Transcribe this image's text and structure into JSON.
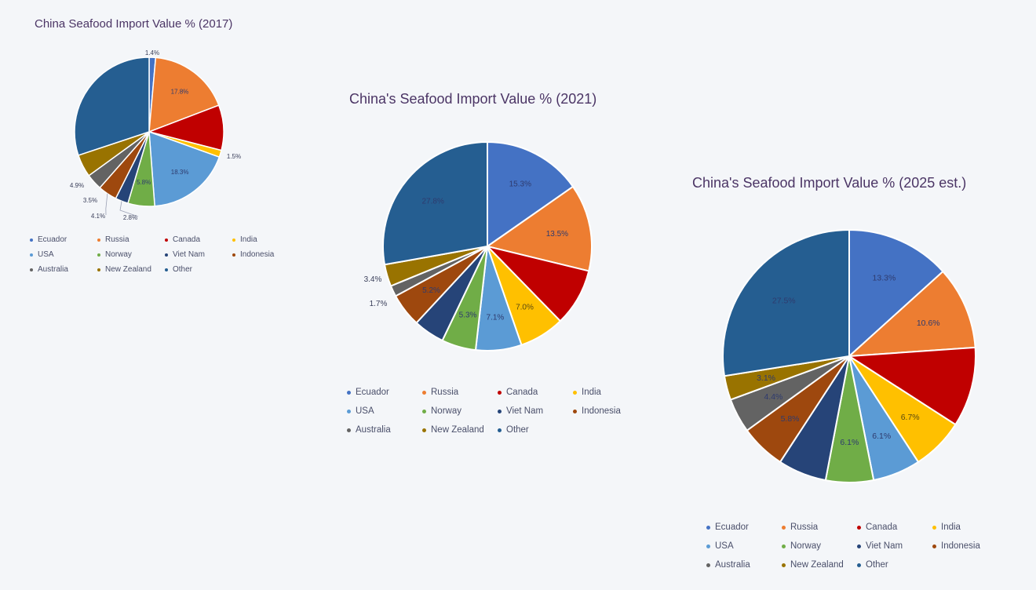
{
  "categories": [
    "Ecuador",
    "Russia",
    "Canada",
    "India",
    "USA",
    "Norway",
    "Viet Nam",
    "Indonesia",
    "Australia",
    "New Zealand",
    "Other"
  ],
  "colors": [
    "#4472c4",
    "#ed7d31",
    "#c00000",
    "#ffc000",
    "#5b9bd5",
    "#70ad47",
    "#264478",
    "#9e480e",
    "#636363",
    "#997300",
    "#255e91"
  ],
  "charts": [
    {
      "title": "China Seafood Import Value % (2017)",
      "slices": [
        {
          "category": "Ecuador",
          "value": 1.4,
          "label": "1.4%"
        },
        {
          "category": "Russia",
          "value": 17.8,
          "label": "17.8%"
        },
        {
          "category": "Canada",
          "value": 9.8,
          "label": ""
        },
        {
          "category": "India",
          "value": 1.5,
          "label": "1.5%"
        },
        {
          "category": "USA",
          "value": 18.3,
          "label": "18.3%"
        },
        {
          "category": "Norway",
          "value": 5.8,
          "label": "5.8%"
        },
        {
          "category": "Viet Nam",
          "value": 2.8,
          "label": "2.8%"
        },
        {
          "category": "Indonesia",
          "value": 4.1,
          "label": "4.1%"
        },
        {
          "category": "Australia",
          "value": 3.5,
          "label": "3.5%"
        },
        {
          "category": "New Zealand",
          "value": 4.9,
          "label": "4.9%"
        },
        {
          "category": "Other",
          "value": 30.1,
          "label": ""
        }
      ]
    },
    {
      "title": "China's Seafood Import Value % (2021)",
      "slices": [
        {
          "category": "Ecuador",
          "value": 15.3,
          "label": "15.3%"
        },
        {
          "category": "Russia",
          "value": 13.5,
          "label": "13.5%"
        },
        {
          "category": "Canada",
          "value": 8.9,
          "label": ""
        },
        {
          "category": "India",
          "value": 7.0,
          "label": "7.0%"
        },
        {
          "category": "USA",
          "value": 7.1,
          "label": "7.1%"
        },
        {
          "category": "Norway",
          "value": 5.3,
          "label": "5.3%"
        },
        {
          "category": "Viet Nam",
          "value": 4.8,
          "label": ""
        },
        {
          "category": "Indonesia",
          "value": 5.2,
          "label": "5.2%"
        },
        {
          "category": "Australia",
          "value": 1.7,
          "label": "1.7%"
        },
        {
          "category": "New Zealand",
          "value": 3.4,
          "label": "3.4%"
        },
        {
          "category": "Other",
          "value": 27.8,
          "label": "27.8%"
        }
      ]
    },
    {
      "title": "China's Seafood Import Value % (2025 est.)",
      "slices": [
        {
          "category": "Ecuador",
          "value": 13.3,
          "label": "13.3%"
        },
        {
          "category": "Russia",
          "value": 10.6,
          "label": "10.6%"
        },
        {
          "category": "Canada",
          "value": 10.2,
          "label": ""
        },
        {
          "category": "India",
          "value": 6.7,
          "label": "6.7%"
        },
        {
          "category": "USA",
          "value": 6.1,
          "label": "6.1%"
        },
        {
          "category": "Norway",
          "value": 6.1,
          "label": "6.1%"
        },
        {
          "category": "Viet Nam",
          "value": 6.2,
          "label": ""
        },
        {
          "category": "Indonesia",
          "value": 5.8,
          "label": "5.8%"
        },
        {
          "category": "Australia",
          "value": 4.4,
          "label": "4.4%"
        },
        {
          "category": "New Zealand",
          "value": 3.1,
          "label": "3.1%"
        },
        {
          "category": "Other",
          "value": 27.5,
          "label": "27.5%"
        }
      ]
    }
  ],
  "chart_data": [
    {
      "type": "pie",
      "title": "China Seafood Import Value % (2017)",
      "categories": [
        "Ecuador",
        "Russia",
        "Canada",
        "India",
        "USA",
        "Norway",
        "Viet Nam",
        "Indonesia",
        "Australia",
        "New Zealand",
        "Other"
      ],
      "values": [
        1.4,
        17.8,
        9.8,
        1.5,
        18.3,
        5.8,
        2.8,
        4.1,
        3.5,
        4.9,
        30.1
      ],
      "legend": "bottom"
    },
    {
      "type": "pie",
      "title": "China's Seafood Import Value % (2021)",
      "categories": [
        "Ecuador",
        "Russia",
        "Canada",
        "India",
        "USA",
        "Norway",
        "Viet Nam",
        "Indonesia",
        "Australia",
        "New Zealand",
        "Other"
      ],
      "values": [
        15.3,
        13.5,
        8.9,
        7.0,
        7.1,
        5.3,
        4.8,
        5.2,
        1.7,
        3.4,
        27.8
      ],
      "legend": "bottom"
    },
    {
      "type": "pie",
      "title": "China's Seafood Import Value % (2025 est.)",
      "categories": [
        "Ecuador",
        "Russia",
        "Canada",
        "India",
        "USA",
        "Norway",
        "Viet Nam",
        "Indonesia",
        "Australia",
        "New Zealand",
        "Other"
      ],
      "values": [
        13.3,
        10.6,
        10.2,
        6.7,
        6.1,
        6.1,
        6.2,
        5.8,
        4.4,
        3.1,
        27.5
      ],
      "legend": "bottom"
    }
  ]
}
